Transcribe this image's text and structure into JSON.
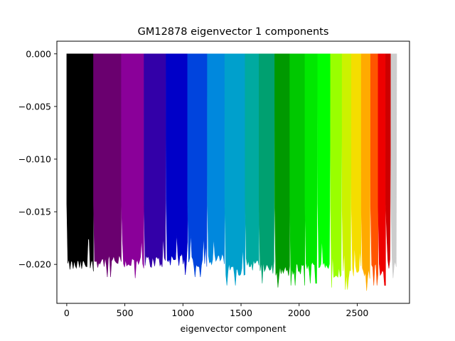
{
  "chart_data": {
    "type": "bar",
    "title": "GM12878 eigenvector 1 components",
    "xlabel": "eigenvector component",
    "ylabel": "",
    "xlim": [
      -85,
      2950
    ],
    "ylim": [
      -0.0237,
      0.0012
    ],
    "x_ticks": [
      0,
      500,
      1000,
      1500,
      2000,
      2500
    ],
    "x_tick_labels": [
      "0",
      "500",
      "1000",
      "1500",
      "2000",
      "2500"
    ],
    "y_ticks": [
      0.0,
      -0.005,
      -0.01,
      -0.015,
      -0.02
    ],
    "y_tick_labels": [
      "0.000",
      "−0.005",
      "−0.010",
      "−0.015",
      "−0.020"
    ],
    "grid": false,
    "legend": "none",
    "series": [
      {
        "start": 0,
        "end": 230,
        "color": "#000000",
        "min_value": -0.0216
      },
      {
        "start": 230,
        "end": 470,
        "color": "#6a006f",
        "min_value": -0.0212
      },
      {
        "start": 470,
        "end": 665,
        "color": "#8a0099",
        "min_value": -0.0213
      },
      {
        "start": 665,
        "end": 855,
        "color": "#3300a8",
        "min_value": -0.0212
      },
      {
        "start": 855,
        "end": 1040,
        "color": "#0000c8",
        "min_value": -0.021
      },
      {
        "start": 1040,
        "end": 1210,
        "color": "#0044dd",
        "min_value": -0.0212
      },
      {
        "start": 1210,
        "end": 1360,
        "color": "#0088dd",
        "min_value": -0.021
      },
      {
        "start": 1360,
        "end": 1535,
        "color": "#00a0cc",
        "min_value": -0.022
      },
      {
        "start": 1535,
        "end": 1655,
        "color": "#00aaa0",
        "min_value": -0.0215
      },
      {
        "start": 1655,
        "end": 1790,
        "color": "#00a070",
        "min_value": -0.0218
      },
      {
        "start": 1790,
        "end": 1920,
        "color": "#009900",
        "min_value": -0.0222
      },
      {
        "start": 1920,
        "end": 2050,
        "color": "#00c800",
        "min_value": -0.022
      },
      {
        "start": 2050,
        "end": 2160,
        "color": "#00e800",
        "min_value": -0.0218
      },
      {
        "start": 2160,
        "end": 2270,
        "color": "#00ff00",
        "min_value": -0.0215
      },
      {
        "start": 2270,
        "end": 2370,
        "color": "#99ff00",
        "min_value": -0.0222
      },
      {
        "start": 2370,
        "end": 2450,
        "color": "#ccf200",
        "min_value": -0.0224
      },
      {
        "start": 2450,
        "end": 2535,
        "color": "#f5dd00",
        "min_value": -0.0222
      },
      {
        "start": 2535,
        "end": 2615,
        "color": "#ffaa00",
        "min_value": -0.0225
      },
      {
        "start": 2615,
        "end": 2680,
        "color": "#ff5500",
        "min_value": -0.022
      },
      {
        "start": 2680,
        "end": 2745,
        "color": "#ee0000",
        "min_value": -0.022
      },
      {
        "start": 2745,
        "end": 2790,
        "color": "#cc0000",
        "min_value": -0.0216
      },
      {
        "start": 2790,
        "end": 2840,
        "color": "#cccccc",
        "min_value": -0.0213
      }
    ]
  }
}
